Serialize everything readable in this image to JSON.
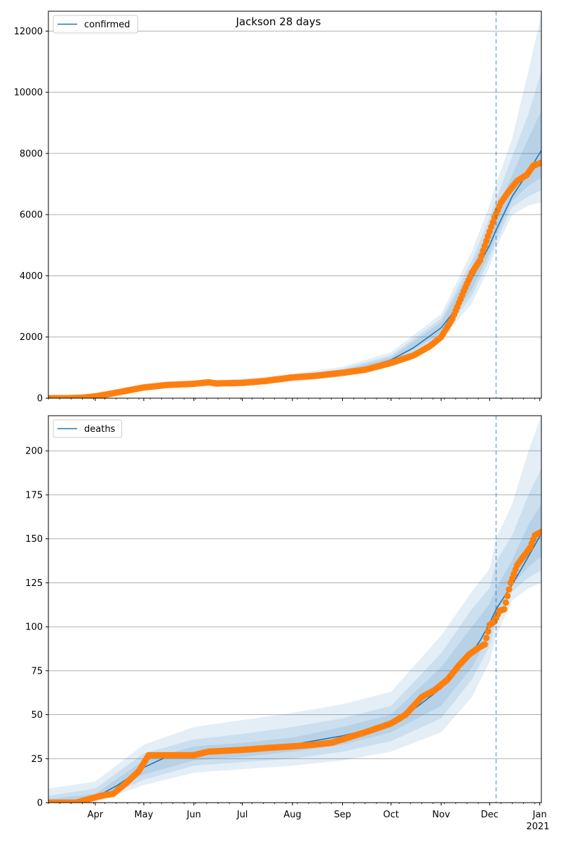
{
  "title": "Jackson 28 days",
  "colors": {
    "line": "#1f77b4",
    "observed": "#ff7f0e",
    "band": "#1f77b4",
    "grid": "#b0b0b0",
    "vline": "#1f77b4"
  },
  "x_ticks": {
    "labels": [
      "Apr",
      "May",
      "Jun",
      "Jul",
      "Aug",
      "Sep",
      "Oct",
      "Nov",
      "Dec",
      "Jan"
    ],
    "dates": [
      "2020-04-01",
      "2020-05-01",
      "2020-06-01",
      "2020-07-01",
      "2020-08-01",
      "2020-09-01",
      "2020-10-01",
      "2020-11-01",
      "2020-12-01",
      "2021-01-01"
    ],
    "year_label": "2021"
  },
  "forecast_start": "2020-12-05",
  "chart_data": [
    {
      "type": "line",
      "panel": "confirmed",
      "legend": "confirmed",
      "legend_position": "top-left",
      "grid": "horizontal",
      "xlim": [
        "2020-03-03",
        "2021-01-02"
      ],
      "ylim": [
        0,
        12650
      ],
      "yticks": [
        0,
        2000,
        4000,
        6000,
        8000,
        10000,
        12000
      ],
      "series": [
        {
          "name": "confirmed",
          "x": [
            "2020-03-03",
            "2020-03-20",
            "2020-04-01",
            "2020-04-15",
            "2020-05-01",
            "2020-05-15",
            "2020-06-01",
            "2020-07-01",
            "2020-08-01",
            "2020-09-01",
            "2020-09-15",
            "2020-10-01",
            "2020-10-15",
            "2020-11-01",
            "2020-11-10",
            "2020-11-20",
            "2020-12-01",
            "2020-12-05",
            "2020-12-15",
            "2020-12-25",
            "2021-01-02"
          ],
          "y": [
            0,
            10,
            80,
            250,
            380,
            440,
            480,
            530,
            650,
            850,
            1000,
            1250,
            1650,
            2300,
            2900,
            3900,
            5000,
            5500,
            6600,
            7400,
            8100
          ]
        }
      ],
      "bands": [
        {
          "x": [
            "2020-03-03",
            "2020-04-01",
            "2020-05-01",
            "2020-06-01",
            "2020-07-01",
            "2020-08-01",
            "2020-09-01",
            "2020-10-01",
            "2020-11-01",
            "2020-11-20",
            "2020-12-01",
            "2020-12-05",
            "2020-12-15",
            "2020-12-25",
            "2021-01-02"
          ],
          "lo": [
            0,
            40,
            300,
            390,
            420,
            530,
            700,
            1050,
            1900,
            3100,
            4300,
            4900,
            6000,
            6300,
            6400
          ],
          "hi": [
            60,
            150,
            470,
            580,
            640,
            790,
            1030,
            1500,
            2750,
            4800,
            6300,
            7000,
            8500,
            10700,
            12550
          ]
        },
        {
          "x": [
            "2020-03-03",
            "2020-04-01",
            "2020-05-01",
            "2020-06-01",
            "2020-07-01",
            "2020-08-01",
            "2020-09-01",
            "2020-10-01",
            "2020-11-01",
            "2020-11-20",
            "2020-12-01",
            "2020-12-05",
            "2020-12-15",
            "2020-12-25",
            "2021-01-02"
          ],
          "lo": [
            0,
            55,
            330,
            420,
            460,
            570,
            750,
            1120,
            2020,
            3350,
            4550,
            5100,
            6250,
            6600,
            6800
          ],
          "hi": [
            40,
            120,
            440,
            540,
            600,
            740,
            960,
            1400,
            2600,
            4500,
            5900,
            6500,
            7900,
            9300,
            10700
          ]
        },
        {
          "x": [
            "2020-03-03",
            "2020-04-01",
            "2020-05-01",
            "2020-06-01",
            "2020-07-01",
            "2020-08-01",
            "2020-09-01",
            "2020-10-01",
            "2020-11-01",
            "2020-11-20",
            "2020-12-01",
            "2020-12-05",
            "2020-12-15",
            "2020-12-25",
            "2021-01-02"
          ],
          "lo": [
            0,
            65,
            350,
            445,
            490,
            610,
            790,
            1170,
            2120,
            3550,
            4750,
            5300,
            6450,
            6950,
            7200
          ],
          "hi": [
            25,
            100,
            415,
            515,
            570,
            700,
            910,
            1330,
            2480,
            4300,
            5600,
            6100,
            7300,
            8500,
            9400
          ]
        }
      ],
      "observed": {
        "x": [
          "2020-03-03",
          "2020-03-15",
          "2020-03-25",
          "2020-04-01",
          "2020-04-10",
          "2020-04-20",
          "2020-05-01",
          "2020-05-15",
          "2020-06-01",
          "2020-06-10",
          "2020-06-15",
          "2020-07-01",
          "2020-07-15",
          "2020-08-01",
          "2020-08-15",
          "2020-09-01",
          "2020-09-15",
          "2020-10-01",
          "2020-10-15",
          "2020-10-25",
          "2020-11-01",
          "2020-11-08",
          "2020-11-15",
          "2020-11-20",
          "2020-11-25",
          "2020-11-30",
          "2020-12-04",
          "2020-12-08",
          "2020-12-12",
          "2020-12-18",
          "2020-12-24",
          "2020-12-28",
          "2021-01-02"
        ],
        "y": [
          0,
          0,
          20,
          60,
          140,
          240,
          350,
          430,
          470,
          520,
          480,
          500,
          560,
          680,
          730,
          830,
          930,
          1150,
          1400,
          1700,
          2000,
          2600,
          3500,
          4100,
          4500,
          5300,
          5900,
          6400,
          6700,
          7100,
          7300,
          7600,
          7700
        ]
      }
    },
    {
      "type": "line",
      "panel": "deaths",
      "legend": "deaths",
      "legend_position": "top-left",
      "grid": "horizontal",
      "xlim": [
        "2020-03-03",
        "2021-01-02"
      ],
      "ylim": [
        0,
        220
      ],
      "yticks": [
        0,
        25,
        50,
        75,
        100,
        125,
        150,
        175,
        200
      ],
      "series": [
        {
          "name": "deaths",
          "x": [
            "2020-03-03",
            "2020-03-25",
            "2020-04-01",
            "2020-04-15",
            "2020-05-01",
            "2020-05-15",
            "2020-06-01",
            "2020-07-01",
            "2020-08-01",
            "2020-09-01",
            "2020-09-15",
            "2020-10-01",
            "2020-10-15",
            "2020-11-01",
            "2020-11-15",
            "2020-11-25",
            "2020-12-01",
            "2020-12-05",
            "2020-12-15",
            "2020-12-25",
            "2021-01-02"
          ],
          "y": [
            0,
            1,
            3,
            10,
            20,
            26,
            28,
            30,
            33,
            38,
            41,
            45,
            53,
            65,
            79,
            92,
            102,
            110,
            124,
            140,
            153
          ]
        }
      ],
      "bands": [
        {
          "x": [
            "2020-03-03",
            "2020-04-01",
            "2020-05-01",
            "2020-06-01",
            "2020-07-01",
            "2020-08-01",
            "2020-09-01",
            "2020-10-01",
            "2020-11-01",
            "2020-11-20",
            "2020-12-01",
            "2020-12-05",
            "2020-12-15",
            "2020-12-25",
            "2021-01-02"
          ],
          "lo": [
            0,
            0,
            10,
            17,
            19,
            21,
            24,
            29,
            40,
            60,
            80,
            95,
            115,
            122,
            125
          ],
          "hi": [
            8,
            12,
            33,
            43,
            47,
            51,
            56,
            63,
            95,
            120,
            133,
            150,
            170,
            200,
            220
          ]
        },
        {
          "x": [
            "2020-03-03",
            "2020-04-01",
            "2020-05-01",
            "2020-06-01",
            "2020-07-01",
            "2020-08-01",
            "2020-09-01",
            "2020-10-01",
            "2020-11-01",
            "2020-11-20",
            "2020-12-01",
            "2020-12-05",
            "2020-12-15",
            "2020-12-25",
            "2021-01-02"
          ],
          "lo": [
            0,
            1,
            13,
            21,
            23,
            25,
            29,
            35,
            48,
            70,
            89,
            103,
            120,
            128,
            132
          ],
          "hi": [
            4,
            8,
            28,
            36,
            39,
            43,
            48,
            55,
            85,
            110,
            122,
            137,
            152,
            175,
            190
          ]
        },
        {
          "x": [
            "2020-03-03",
            "2020-04-01",
            "2020-05-01",
            "2020-06-01",
            "2020-07-01",
            "2020-08-01",
            "2020-09-01",
            "2020-10-01",
            "2020-11-01",
            "2020-11-20",
            "2020-12-01",
            "2020-12-05",
            "2020-12-15",
            "2020-12-25",
            "2021-01-02"
          ],
          "lo": [
            0,
            2,
            16,
            24,
            26,
            29,
            33,
            40,
            55,
            77,
            95,
            108,
            124,
            134,
            140
          ],
          "hi": [
            2,
            5,
            24,
            32,
            34,
            37,
            43,
            50,
            77,
            100,
            113,
            122,
            138,
            158,
            170
          ]
        }
      ],
      "observed": {
        "x": [
          "2020-03-03",
          "2020-03-20",
          "2020-03-28",
          "2020-04-05",
          "2020-04-12",
          "2020-04-20",
          "2020-04-28",
          "2020-05-04",
          "2020-05-10",
          "2020-05-20",
          "2020-06-01",
          "2020-06-10",
          "2020-07-01",
          "2020-07-15",
          "2020-08-01",
          "2020-08-15",
          "2020-08-25",
          "2020-09-01",
          "2020-09-15",
          "2020-10-01",
          "2020-10-10",
          "2020-10-20",
          "2020-10-28",
          "2020-11-05",
          "2020-11-12",
          "2020-11-18",
          "2020-11-24",
          "2020-11-28",
          "2020-12-01",
          "2020-12-04",
          "2020-12-07",
          "2020-12-10",
          "2020-12-14",
          "2020-12-18",
          "2020-12-22",
          "2020-12-26",
          "2020-12-29",
          "2021-01-02"
        ],
        "y": [
          0,
          0,
          2,
          4,
          5,
          11,
          18,
          27,
          27,
          27,
          27,
          29,
          30,
          31,
          32,
          33,
          34,
          36,
          40,
          45,
          50,
          60,
          64,
          70,
          78,
          84,
          88,
          90,
          101,
          103,
          109,
          110,
          125,
          135,
          140,
          145,
          152,
          154
        ]
      }
    }
  ]
}
